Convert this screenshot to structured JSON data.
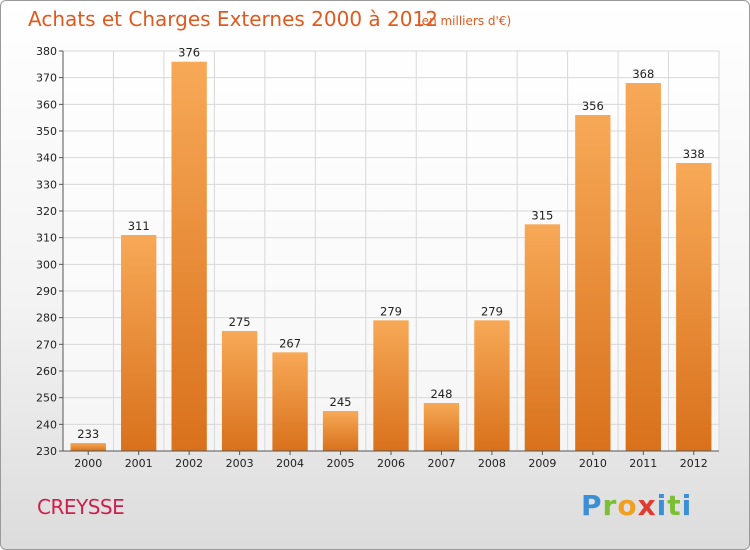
{
  "header": {
    "title": "Achats et Charges Externes 2000 à 2012",
    "subtitle": "(en milliers d'€)"
  },
  "footer": {
    "city": "CREYSSE",
    "logo": "Proxiti"
  },
  "colors": {
    "title": "#e05a1e",
    "city": "#cf1f4e",
    "bar_top": "#f7a957",
    "bar_bottom": "#d9711c",
    "grid": "#d8d8d8"
  },
  "chart_data": {
    "type": "bar",
    "title": "Achats et Charges Externes 2000 à 2012",
    "subtitle": "(en milliers d'€)",
    "categories": [
      "2000",
      "2001",
      "2002",
      "2003",
      "2004",
      "2005",
      "2006",
      "2007",
      "2008",
      "2009",
      "2010",
      "2011",
      "2012"
    ],
    "values": [
      233,
      311,
      376,
      275,
      267,
      245,
      279,
      248,
      279,
      315,
      356,
      368,
      338
    ],
    "ylim": [
      230,
      380
    ],
    "yticks": [
      230,
      240,
      250,
      260,
      270,
      280,
      290,
      300,
      310,
      320,
      330,
      340,
      350,
      360,
      370,
      380
    ],
    "grid": true,
    "xlabel": "",
    "ylabel": ""
  }
}
